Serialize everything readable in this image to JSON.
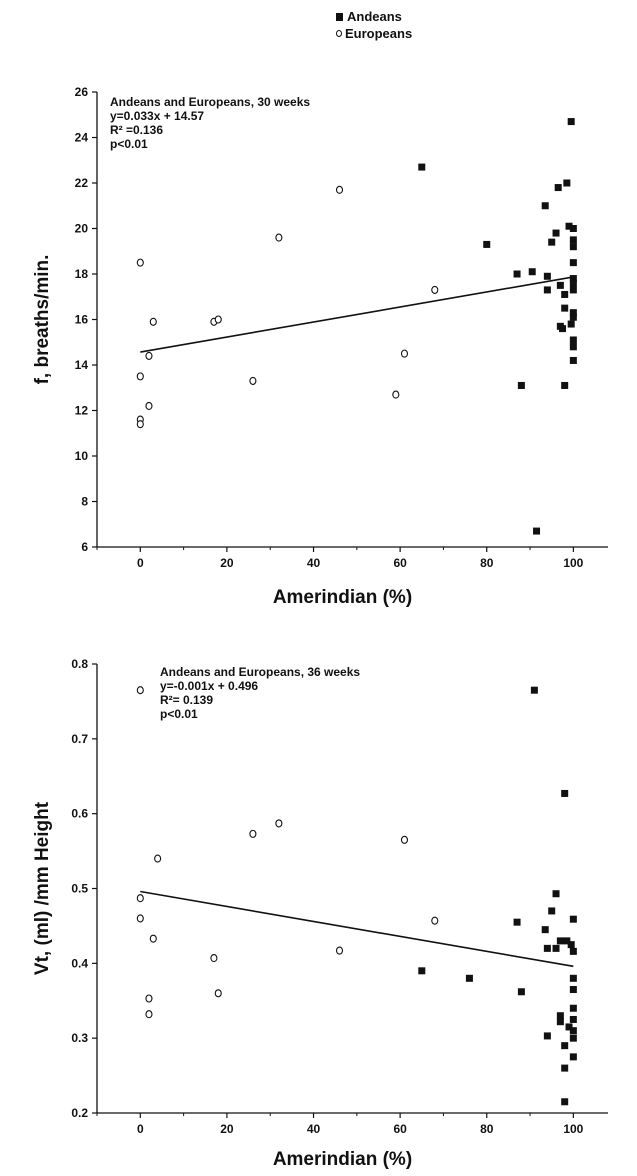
{
  "legend": {
    "andeans": "Andeans",
    "europeans": "Europeans"
  },
  "chart_data": [
    {
      "type": "scatter",
      "title": "",
      "xlabel": "Amerindian (%)",
      "ylabel": "f, breaths/min.",
      "xlim": [
        -10,
        108
      ],
      "ylim": [
        6,
        26
      ],
      "xticks": [
        0,
        20,
        40,
        60,
        80,
        100
      ],
      "yticks": [
        6,
        8,
        10,
        12,
        14,
        16,
        18,
        20,
        22,
        24,
        26
      ],
      "annotation": [
        "Andeans and Europeans, 30 weeks",
        "y=0.033x + 14.57",
        "R² =0.136",
        "p<0.01"
      ],
      "regression": {
        "slope": 0.033,
        "intercept": 14.57
      },
      "series": [
        {
          "name": "Andeans",
          "marker": "square",
          "points": [
            [
              65,
              22.7
            ],
            [
              80,
              19.3
            ],
            [
              87,
              18.0
            ],
            [
              88,
              13.1
            ],
            [
              90.5,
              18.1
            ],
            [
              91.5,
              6.7
            ],
            [
              93.5,
              21.0
            ],
            [
              94,
              17.9
            ],
            [
              94,
              17.3
            ],
            [
              95,
              19.4
            ],
            [
              96,
              19.8
            ],
            [
              96.5,
              21.8
            ],
            [
              97,
              17.5
            ],
            [
              97,
              15.7
            ],
            [
              97.5,
              15.6
            ],
            [
              98,
              17.1
            ],
            [
              98,
              16.5
            ],
            [
              98,
              13.1
            ],
            [
              98.5,
              22.0
            ],
            [
              99,
              20.1
            ],
            [
              99.5,
              15.8
            ],
            [
              99.5,
              24.7
            ],
            [
              100,
              20.0
            ],
            [
              100,
              19.5
            ],
            [
              100,
              19.2
            ],
            [
              100,
              18.5
            ],
            [
              100,
              17.8
            ],
            [
              100,
              17.6
            ],
            [
              100,
              17.3
            ],
            [
              100,
              16.3
            ],
            [
              100,
              16.1
            ],
            [
              100,
              15.1
            ],
            [
              100,
              14.8
            ],
            [
              100,
              14.2
            ]
          ]
        },
        {
          "name": "Europeans",
          "marker": "circle",
          "points": [
            [
              0,
              18.5
            ],
            [
              0,
              13.5
            ],
            [
              0,
              11.6
            ],
            [
              0,
              11.4
            ],
            [
              2,
              14.4
            ],
            [
              2,
              12.2
            ],
            [
              3,
              15.9
            ],
            [
              17,
              15.9
            ],
            [
              18,
              16.0
            ],
            [
              26,
              13.3
            ],
            [
              32,
              19.6
            ],
            [
              46,
              21.7
            ],
            [
              59,
              12.7
            ],
            [
              61,
              14.5
            ],
            [
              68,
              17.3
            ]
          ]
        }
      ]
    },
    {
      "type": "scatter",
      "title": "",
      "xlabel": "Amerindian (%)",
      "ylabel": "Vt, (ml) /mm Height",
      "xlim": [
        -10,
        108
      ],
      "ylim": [
        0.2,
        0.8
      ],
      "xticks": [
        0,
        20,
        40,
        60,
        80,
        100
      ],
      "yticks": [
        0.2,
        0.3,
        0.4,
        0.5,
        0.6,
        0.7,
        0.8
      ],
      "annotation": [
        "Andeans and Europeans, 36 weeks",
        "y=-0.001x + 0.496",
        "R²= 0.139",
        "p<0.01"
      ],
      "regression": {
        "slope": -0.001,
        "intercept": 0.496
      },
      "series": [
        {
          "name": "Andeans",
          "marker": "square",
          "points": [
            [
              65,
              0.39
            ],
            [
              76,
              0.38
            ],
            [
              87,
              0.455
            ],
            [
              88,
              0.362
            ],
            [
              91,
              0.765
            ],
            [
              93.5,
              0.445
            ],
            [
              94,
              0.42
            ],
            [
              94,
              0.303
            ],
            [
              95,
              0.47
            ],
            [
              96,
              0.493
            ],
            [
              96,
              0.42
            ],
            [
              97,
              0.43
            ],
            [
              97,
              0.33
            ],
            [
              97,
              0.322
            ],
            [
              98,
              0.627
            ],
            [
              98,
              0.29
            ],
            [
              98,
              0.26
            ],
            [
              98,
              0.215
            ],
            [
              98.5,
              0.43
            ],
            [
              99,
              0.315
            ],
            [
              99.5,
              0.425
            ],
            [
              100,
              0.459
            ],
            [
              100,
              0.416
            ],
            [
              100,
              0.38
            ],
            [
              100,
              0.365
            ],
            [
              100,
              0.34
            ],
            [
              100,
              0.325
            ],
            [
              100,
              0.31
            ],
            [
              100,
              0.3
            ],
            [
              100,
              0.275
            ]
          ]
        },
        {
          "name": "Europeans",
          "marker": "circle",
          "points": [
            [
              0,
              0.765
            ],
            [
              0,
              0.487
            ],
            [
              0,
              0.46
            ],
            [
              2,
              0.353
            ],
            [
              2,
              0.332
            ],
            [
              3,
              0.433
            ],
            [
              4,
              0.54
            ],
            [
              17,
              0.407
            ],
            [
              18,
              0.36
            ],
            [
              26,
              0.573
            ],
            [
              32,
              0.587
            ],
            [
              46,
              0.417
            ],
            [
              61,
              0.565
            ],
            [
              68,
              0.457
            ]
          ]
        }
      ]
    }
  ]
}
